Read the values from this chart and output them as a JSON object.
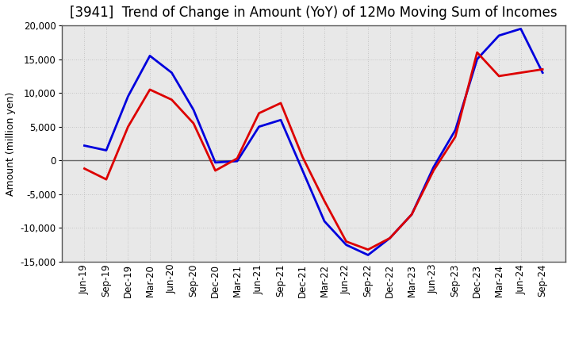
{
  "title": "[3941]  Trend of Change in Amount (YoY) of 12Mo Moving Sum of Incomes",
  "ylabel": "Amount (million yen)",
  "background_color": "#ffffff",
  "plot_bg_color": "#e8e8e8",
  "grid_color": "#bbbbbb",
  "labels": [
    "Jun-19",
    "Sep-19",
    "Dec-19",
    "Mar-20",
    "Jun-20",
    "Sep-20",
    "Dec-20",
    "Mar-21",
    "Jun-21",
    "Sep-21",
    "Dec-21",
    "Mar-22",
    "Jun-22",
    "Sep-22",
    "Dec-22",
    "Mar-23",
    "Jun-23",
    "Sep-23",
    "Dec-23",
    "Mar-24",
    "Jun-24",
    "Sep-24"
  ],
  "ordinary_income": [
    2200,
    1500,
    9500,
    15500,
    13000,
    7500,
    -300,
    -100,
    5000,
    6000,
    -1500,
    -9000,
    -12500,
    -14000,
    -11500,
    -8000,
    -1000,
    4500,
    15000,
    18500,
    19500,
    13000
  ],
  "net_income": [
    -1200,
    -2800,
    5000,
    10500,
    9000,
    5500,
    -1500,
    300,
    7000,
    8500,
    500,
    -6000,
    -12000,
    -13200,
    -11500,
    -8000,
    -1500,
    3500,
    16000,
    12500,
    13000,
    13500
  ],
  "ordinary_color": "#0000dd",
  "net_color": "#dd0000",
  "ylim": [
    -15000,
    20000
  ],
  "yticks": [
    -15000,
    -10000,
    -5000,
    0,
    5000,
    10000,
    15000,
    20000
  ],
  "line_width": 2.0,
  "title_fontsize": 12,
  "axis_fontsize": 9,
  "tick_fontsize": 8.5
}
